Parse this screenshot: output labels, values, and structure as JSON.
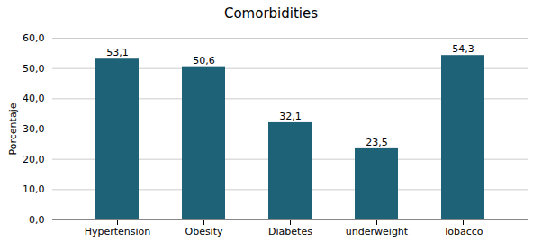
{
  "chart_data": {
    "type": "bar",
    "title": "Comorbidities",
    "categories": [
      "Hypertension",
      "Obesity",
      "Diabetes",
      "underweight",
      "Tobacco"
    ],
    "values": [
      53.1,
      50.6,
      32.1,
      23.5,
      54.3
    ],
    "value_labels": [
      "53,1",
      "50,6",
      "32,1",
      "23,5",
      "54,3"
    ],
    "data_labels": true,
    "color": "#1e6278",
    "ylabel": "Porcentaje",
    "ylim": [
      0,
      60
    ],
    "yticks": [
      {
        "value": 0,
        "label": "0,0"
      },
      {
        "value": 10,
        "label": "10,0"
      },
      {
        "value": 20,
        "label": "20,0"
      },
      {
        "value": 30,
        "label": "30,0"
      },
      {
        "value": 40,
        "label": "40,0"
      },
      {
        "value": 50,
        "label": "50,0"
      },
      {
        "value": 60,
        "label": "60,0"
      }
    ],
    "grid": true
  }
}
